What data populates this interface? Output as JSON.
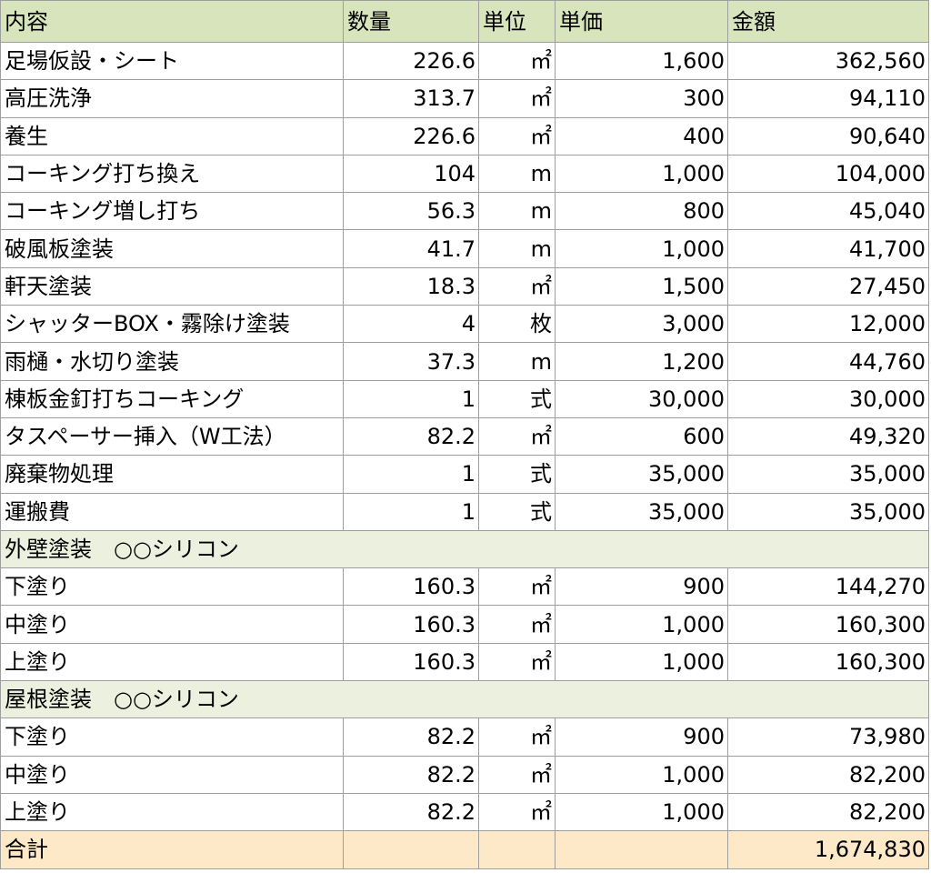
{
  "table": {
    "headers": {
      "item": "内容",
      "qty": "数量",
      "unit": "単位",
      "unit_price": "単価",
      "amount": "金額"
    },
    "items": [
      {
        "item": "足場仮設・シート",
        "qty": "226.6",
        "unit": "㎡",
        "unit_price": "1,600",
        "amount": "362,560"
      },
      {
        "item": "高圧洗浄",
        "qty": "313.7",
        "unit": "㎡",
        "unit_price": "300",
        "amount": "94,110"
      },
      {
        "item": "養生",
        "qty": "226.6",
        "unit": "㎡",
        "unit_price": "400",
        "amount": "90,640"
      },
      {
        "item": "コーキング打ち換え",
        "qty": "104",
        "unit": "m",
        "unit_price": "1,000",
        "amount": "104,000"
      },
      {
        "item": "コーキング増し打ち",
        "qty": "56.3",
        "unit": "m",
        "unit_price": "800",
        "amount": "45,040"
      },
      {
        "item": "破風板塗装",
        "qty": "41.7",
        "unit": "m",
        "unit_price": "1,000",
        "amount": "41,700"
      },
      {
        "item": "軒天塗装",
        "qty": "18.3",
        "unit": "㎡",
        "unit_price": "1,500",
        "amount": "27,450"
      },
      {
        "item": "シャッターBOX・霧除け塗装",
        "qty": "4",
        "unit": "枚",
        "unit_price": "3,000",
        "amount": "12,000"
      },
      {
        "item": "雨樋・水切り塗装",
        "qty": "37.3",
        "unit": "m",
        "unit_price": "1,200",
        "amount": "44,760"
      },
      {
        "item": "棟板金釘打ちコーキング",
        "qty": "1",
        "unit": "式",
        "unit_price": "30,000",
        "amount": "30,000"
      },
      {
        "item": "タスペーサー挿入（W工法）",
        "qty": "82.2",
        "unit": "㎡",
        "unit_price": "600",
        "amount": "49,320"
      },
      {
        "item": "廃棄物処理",
        "qty": "1",
        "unit": "式",
        "unit_price": "35,000",
        "amount": "35,000"
      },
      {
        "item": "運搬費",
        "qty": "1",
        "unit": "式",
        "unit_price": "35,000",
        "amount": "35,000"
      }
    ],
    "sections": [
      {
        "label": "外壁塗装　○○シリコン",
        "rows": [
          {
            "item": "下塗り",
            "qty": "160.3",
            "unit": "㎡",
            "unit_price": "900",
            "amount": "144,270"
          },
          {
            "item": "中塗り",
            "qty": "160.3",
            "unit": "㎡",
            "unit_price": "1,000",
            "amount": "160,300"
          },
          {
            "item": "上塗り",
            "qty": "160.3",
            "unit": "㎡",
            "unit_price": "1,000",
            "amount": "160,300"
          }
        ]
      },
      {
        "label": "屋根塗装　○○シリコン",
        "rows": [
          {
            "item": "下塗り",
            "qty": "82.2",
            "unit": "㎡",
            "unit_price": "900",
            "amount": "73,980"
          },
          {
            "item": "中塗り",
            "qty": "82.2",
            "unit": "㎡",
            "unit_price": "1,000",
            "amount": "82,200"
          },
          {
            "item": "上塗り",
            "qty": "82.2",
            "unit": "㎡",
            "unit_price": "1,000",
            "amount": "82,200"
          }
        ]
      }
    ],
    "total": {
      "label": "合計",
      "amount": "1,674,830"
    }
  },
  "colors": {
    "header_bg": "#d8e4bc",
    "section_bg": "#ebf1de",
    "total_bg": "#fde9c8",
    "border": "#9e9e9e"
  }
}
